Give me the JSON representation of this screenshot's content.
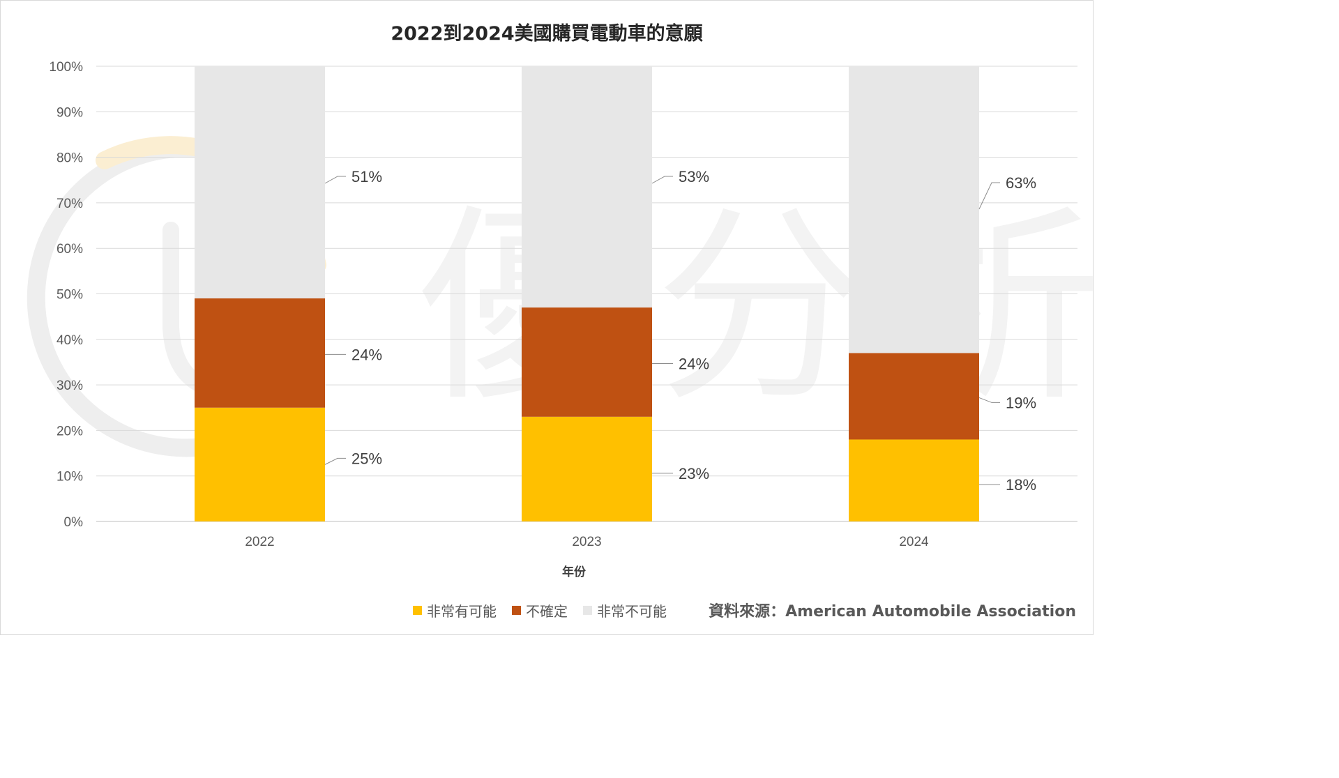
{
  "chart_data": {
    "type": "bar",
    "stacked": true,
    "normalized": true,
    "title": "2022到2024美國購買電動車的意願",
    "xlabel": "年份",
    "ylabel": "",
    "categories": [
      "2022",
      "2023",
      "2024"
    ],
    "ylim": [
      0,
      100
    ],
    "yticks": [
      "0%",
      "10%",
      "20%",
      "30%",
      "40%",
      "50%",
      "60%",
      "70%",
      "80%",
      "90%",
      "100%"
    ],
    "series": [
      {
        "name": "非常有可能",
        "values": [
          25,
          23,
          18
        ],
        "labels": [
          "25%",
          "23%",
          "18%"
        ],
        "color": "#ffc000"
      },
      {
        "name": "不確定",
        "values": [
          24,
          24,
          19
        ],
        "labels": [
          "24%",
          "24%",
          "19%"
        ],
        "color": "#c0504d"
      },
      {
        "name": "非常不可能",
        "values": [
          51,
          53,
          63
        ],
        "labels": [
          "51%",
          "53%",
          "63%"
        ],
        "color": "#e7e7e7"
      }
    ],
    "grid": true,
    "legend": "bottom"
  },
  "source_text": "資料來源：American Automobile Association",
  "watermark": "優分析",
  "colors": {
    "bar_fill_2": "#bf5112",
    "gridline": "#d9d9d9",
    "watermark": "#f2f2f2"
  }
}
